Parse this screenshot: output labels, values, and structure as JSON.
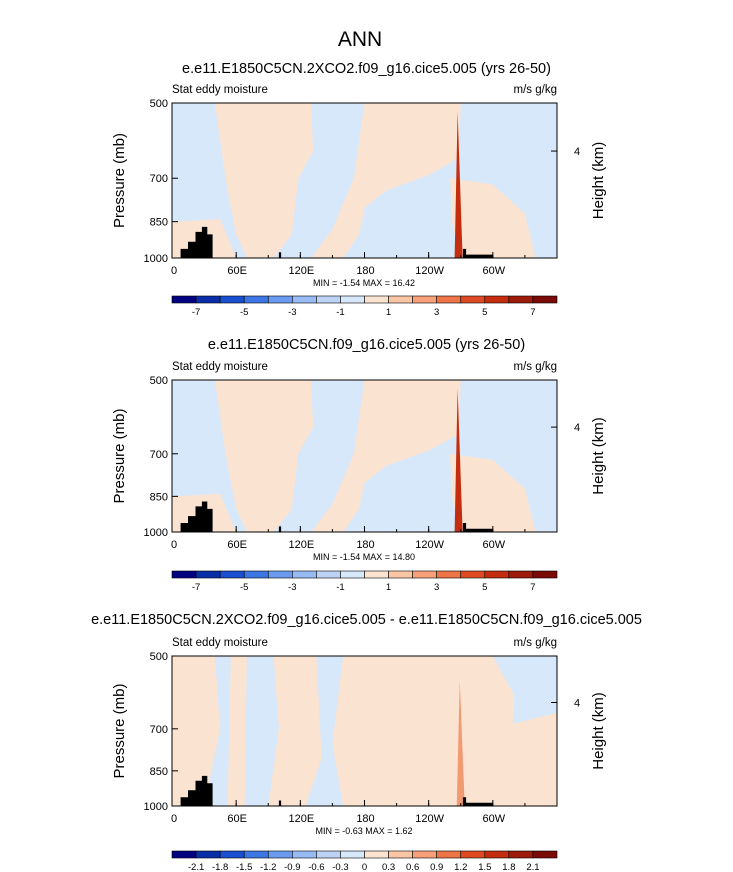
{
  "figure": {
    "title": "ANN"
  },
  "chart_data": [
    {
      "type": "heatmap",
      "title": "e.e11.E1850C5CN.2XCO2.f09_g16.cice5.005 (yrs 26-50)",
      "left_label": "Stat eddy moisture",
      "right_label": "m/s g/kg",
      "ylabel": "Pressure (mb)",
      "ylabel_right": "Height (km)",
      "y_ticks": [
        "500",
        "700",
        "850",
        "1000"
      ],
      "y_tick_values": [
        500,
        700,
        850,
        1000
      ],
      "ylim": [
        1000,
        500
      ],
      "right_ticks": [
        "4"
      ],
      "right_tick_values": [
        4
      ],
      "x_ticks": [
        "0",
        "60E",
        "120E",
        "180",
        "120W",
        "60W"
      ],
      "x_tick_values": [
        0,
        60,
        120,
        180,
        240,
        300
      ],
      "xlim": [
        0,
        360
      ],
      "stats": "MIN = -1.54  MAX = 16.42",
      "min": -1.54,
      "max": 16.42,
      "colorbar_levels": [
        -8,
        -7,
        -6,
        -5,
        -4,
        -3,
        -2,
        -1,
        0,
        1,
        2,
        3,
        4,
        5,
        6,
        7,
        8
      ],
      "colorbar_labels": [
        "-7",
        "-5",
        "-3",
        "-1",
        "1",
        "3",
        "5",
        "7"
      ]
    },
    {
      "type": "heatmap",
      "title": "e.e11.E1850C5CN.f09_g16.cice5.005 (yrs 26-50)",
      "left_label": "Stat eddy moisture",
      "right_label": "m/s g/kg",
      "ylabel": "Pressure (mb)",
      "ylabel_right": "Height (km)",
      "y_ticks": [
        "500",
        "700",
        "850",
        "1000"
      ],
      "y_tick_values": [
        500,
        700,
        850,
        1000
      ],
      "ylim": [
        1000,
        500
      ],
      "right_ticks": [
        "4"
      ],
      "right_tick_values": [
        4
      ],
      "x_ticks": [
        "0",
        "60E",
        "120E",
        "180",
        "120W",
        "60W"
      ],
      "x_tick_values": [
        0,
        60,
        120,
        180,
        240,
        300
      ],
      "xlim": [
        0,
        360
      ],
      "stats": "MIN = -1.54  MAX = 14.80",
      "min": -1.54,
      "max": 14.8,
      "colorbar_levels": [
        -8,
        -7,
        -6,
        -5,
        -4,
        -3,
        -2,
        -1,
        0,
        1,
        2,
        3,
        4,
        5,
        6,
        7,
        8
      ],
      "colorbar_labels": [
        "-7",
        "-5",
        "-3",
        "-1",
        "1",
        "3",
        "5",
        "7"
      ]
    },
    {
      "type": "heatmap",
      "title": "e.e11.E1850C5CN.2XCO2.f09_g16.cice5.005 - e.e11.E1850C5CN.f09_g16.cice5.005",
      "left_label": "Stat eddy moisture",
      "right_label": "m/s g/kg",
      "ylabel": "Pressure (mb)",
      "ylabel_right": "Height (km)",
      "y_ticks": [
        "500",
        "700",
        "850",
        "1000"
      ],
      "y_tick_values": [
        500,
        700,
        850,
        1000
      ],
      "ylim": [
        1000,
        500
      ],
      "right_ticks": [
        "4"
      ],
      "right_tick_values": [
        4
      ],
      "x_ticks": [
        "0",
        "60E",
        "120E",
        "180",
        "120W",
        "60W"
      ],
      "x_tick_values": [
        0,
        60,
        120,
        180,
        240,
        300
      ],
      "xlim": [
        0,
        360
      ],
      "stats": "MIN = -0.63  MAX =  1.62",
      "min": -0.63,
      "max": 1.62,
      "colorbar_levels": [
        -2.4,
        -2.1,
        -1.8,
        -1.5,
        -1.2,
        -0.9,
        -0.6,
        -0.3,
        0,
        0.3,
        0.6,
        0.9,
        1.2,
        1.5,
        1.8,
        2.1,
        2.4
      ],
      "colorbar_labels": [
        "-2.1",
        "-1.8",
        "-1.5",
        "-1.2",
        "-0.9",
        "-0.6",
        "-0.3",
        "0",
        "0.3",
        "0.6",
        "0.9",
        "1.2",
        "1.5",
        "1.8",
        "2.1"
      ]
    }
  ],
  "colors": {
    "palette": [
      "#000080",
      "#0a2ea8",
      "#1a4fd0",
      "#3d77e6",
      "#6b9bf0",
      "#98bbf4",
      "#bcd3f5",
      "#d6e8fa",
      "#fbe3d2",
      "#fbc6a6",
      "#f7a079",
      "#ef7448",
      "#de4a24",
      "#c42e0e",
      "#9e1a0a",
      "#7a0a05"
    ],
    "negative_fill": "#d6e8fa",
    "positive_fill": "#fbe3d2",
    "peak_fill": "#c42e0e",
    "terrain": "#000000"
  }
}
